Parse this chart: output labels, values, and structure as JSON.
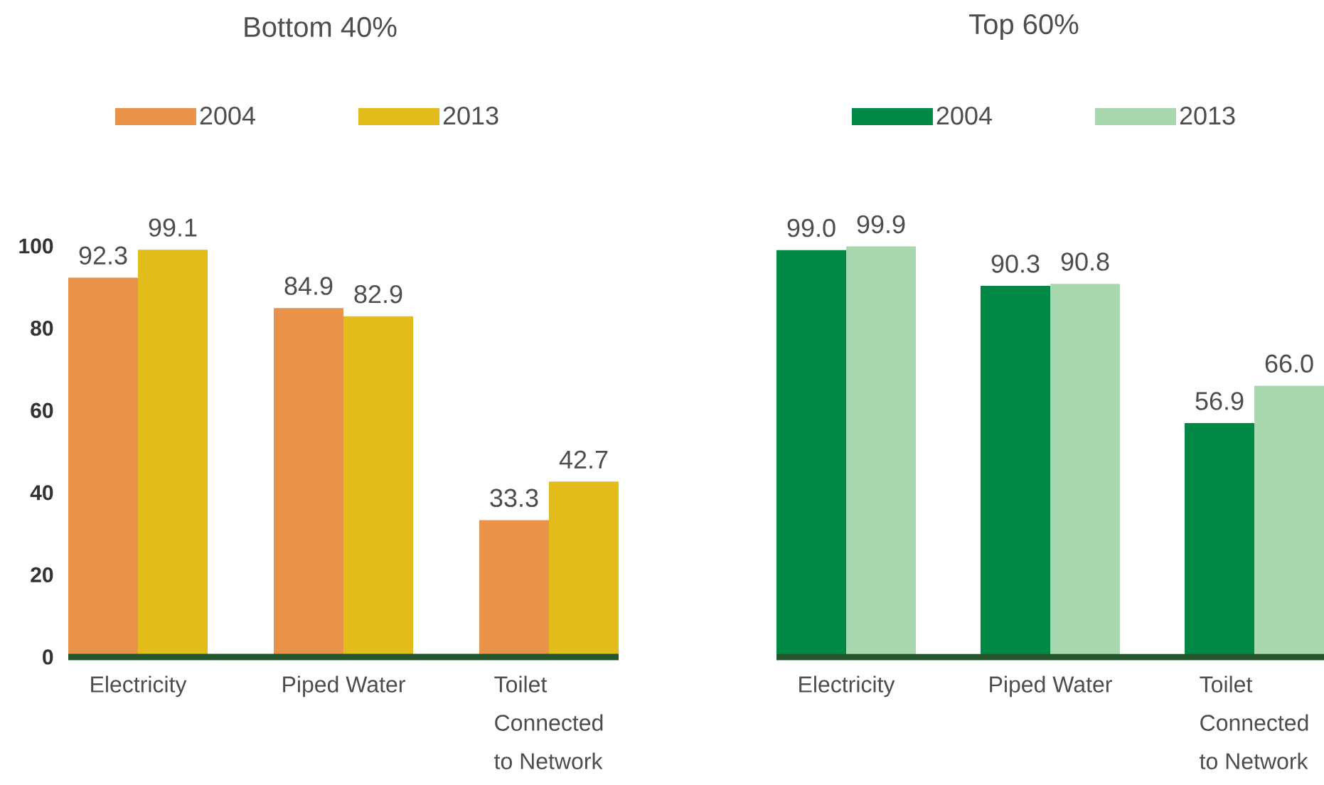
{
  "chart_data": [
    {
      "type": "bar",
      "title": "Bottom 40%",
      "categories": [
        "Electricity",
        "Piped Water",
        "Toilet Connected to Network"
      ],
      "series": [
        {
          "name": "2004",
          "color": "#e8924a",
          "values": [
            92.3,
            84.9,
            33.3
          ]
        },
        {
          "name": "2013",
          "color": "#e1bc1b",
          "values": [
            99.1,
            82.9,
            42.7
          ]
        }
      ],
      "ylim": [
        0,
        100
      ],
      "yticks": [
        0,
        20,
        40,
        60,
        80,
        100
      ],
      "data_labels": true,
      "legend": "top"
    },
    {
      "type": "bar",
      "title": "Top 60%",
      "categories": [
        "Electricity",
        "Piped Water",
        "Toilet Connected to Network"
      ],
      "series": [
        {
          "name": "2004",
          "color": "#008844",
          "values": [
            99.0,
            90.3,
            56.9
          ],
          "value_labels": [
            "99.0",
            "90.3",
            "56.9"
          ]
        },
        {
          "name": "2013",
          "color": "#a9d7ae",
          "values": [
            99.9,
            90.8,
            66.0
          ],
          "value_labels": [
            "99.9",
            "90.8",
            "66.0"
          ]
        }
      ],
      "ylim": [
        0,
        100
      ],
      "tick_labels": "x",
      "legend": "top"
    }
  ]
}
